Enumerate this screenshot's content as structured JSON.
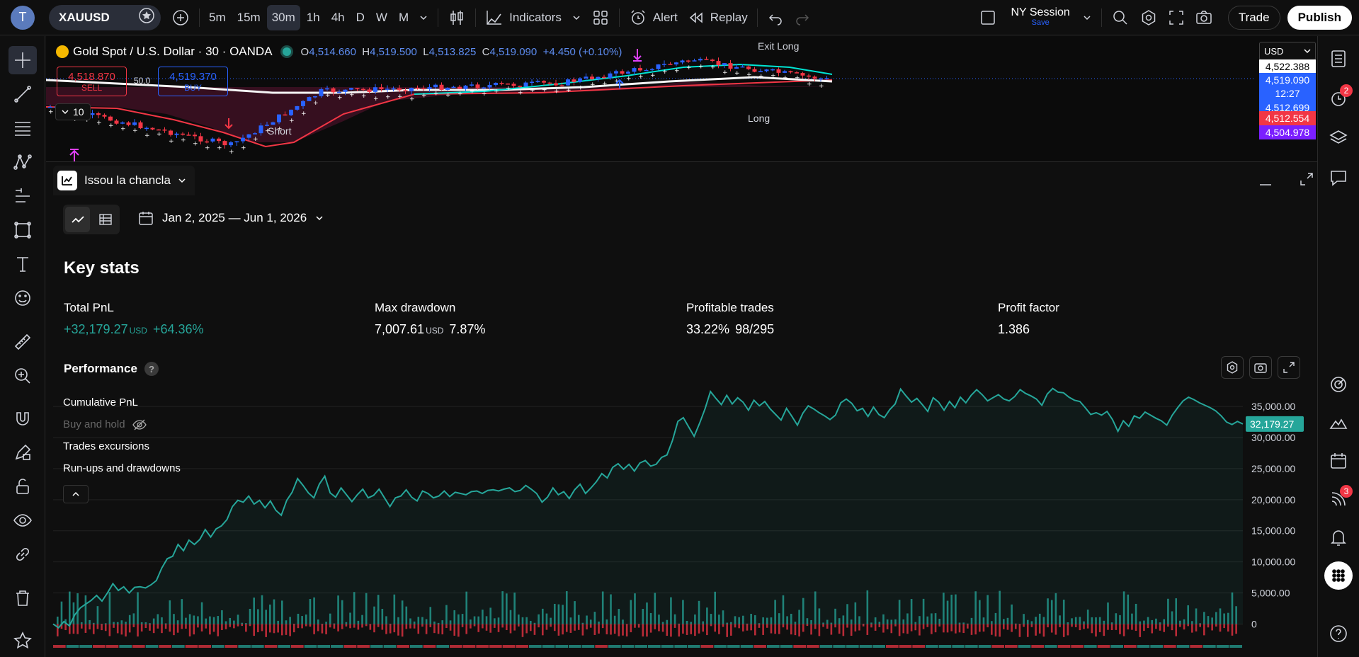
{
  "topbar": {
    "avatar_letter": "T",
    "symbol": "XAUUSD",
    "timeframes": [
      "5m",
      "15m",
      "30m",
      "1h",
      "4h",
      "D",
      "W",
      "M"
    ],
    "active_timeframe": "30m",
    "indicators_label": "Indicators",
    "alert_label": "Alert",
    "replay_label": "Replay",
    "session_label": "NY Session",
    "session_sub": "Save",
    "trade_label": "Trade",
    "publish_label": "Publish"
  },
  "chart": {
    "title": "Gold Spot / U.S. Dollar · 30 · OANDA",
    "open_label": "O",
    "open": "4,514.660",
    "high_label": "H",
    "high": "4,519.500",
    "low_label": "L",
    "low": "4,513.825",
    "close_label": "C",
    "close": "4,519.090",
    "change": "+4.450 (+0.10%)",
    "sell_price": "4,518.870",
    "sell_label": "SELL",
    "spread": "50.0",
    "buy_price": "4,519.370",
    "buy_label": "BUY",
    "collapse_count": "10",
    "annotations": {
      "short": "Short",
      "exit_long": "Exit Long",
      "long": "Long"
    },
    "currency": "USD",
    "price_labels": [
      {
        "value": "4,522.388",
        "bg": "#ffffff",
        "fg": "#000000"
      },
      {
        "value": "4,519.090",
        "bg": "#2962ff",
        "fg": "#ffffff"
      },
      {
        "value": "12:27",
        "bg": "#2962ff",
        "fg": "#ffffff"
      },
      {
        "value": "4,512.699",
        "bg": "#2962ff",
        "fg": "#ffffff"
      },
      {
        "value": "4,512.554",
        "bg": "#f23645",
        "fg": "#ffffff"
      },
      {
        "value": "4,504.978",
        "bg": "#7b1fff",
        "fg": "#ffffff"
      }
    ]
  },
  "panel": {
    "strategy_name": "Issou la chancla",
    "date_range": "Jan 2, 2025 — Jun 1, 2026",
    "key_stats_title": "Key stats",
    "stats": [
      {
        "label": "Total PnL",
        "value": "+32,179.27",
        "unit": "USD",
        "extra": "+64.36%",
        "positive": true
      },
      {
        "label": "Max drawdown",
        "value": "7,007.61",
        "unit": "USD",
        "extra": "7.87%",
        "positive": false
      },
      {
        "label": "Profitable trades",
        "value": "33.22%",
        "unit": "",
        "extra": "98/295",
        "positive": false
      },
      {
        "label": "Profit factor",
        "value": "1.386",
        "unit": "",
        "extra": "",
        "positive": false
      }
    ],
    "performance_title": "Performance",
    "help_glyph": "?",
    "series_toggles": [
      "Cumulative PnL",
      "Buy and hold",
      "Trades excursions",
      "Run-ups and drawdowns"
    ]
  },
  "chart_data": {
    "type": "line",
    "ylim": [
      -2000,
      39000
    ],
    "yticks": [
      "35,000.00",
      "30,000.00",
      "25,000.00",
      "20,000.00",
      "15,000.00",
      "10,000.00",
      "5,000.00",
      "0"
    ],
    "last_value_label": "32,179.27",
    "series": [
      {
        "name": "Cumulative PnL",
        "color": "#26a69a",
        "values": [
          0,
          -600,
          400,
          -300,
          1500,
          2600,
          3200,
          3800,
          4600,
          3700,
          5000,
          6500,
          5400,
          6000,
          5000,
          5900,
          6000,
          5800,
          6300,
          7000,
          9000,
          10500,
          10900,
          12800,
          11800,
          13500,
          12800,
          13600,
          15200,
          14000,
          15300,
          15800,
          16800,
          18900,
          19900,
          19600,
          20600,
          19300,
          19900,
          18700,
          19800,
          18300,
          17500,
          19900,
          21200,
          23400,
          22300,
          21100,
          20300,
          22500,
          23800,
          21100,
          20400,
          21900,
          20800,
          19700,
          20800,
          21700,
          20300,
          20700,
          21700,
          20300,
          18900,
          20300,
          20600,
          21600,
          20400,
          19800,
          21400,
          21000,
          20300,
          20600,
          21400,
          20500,
          21200,
          21000,
          20800,
          21300,
          21400,
          21000,
          21500,
          21600,
          21400,
          21700,
          21900,
          21300,
          21500,
          22300,
          21700,
          21000,
          19600,
          20400,
          21900,
          20800,
          21300,
          20200,
          21600,
          22500,
          21000,
          21900,
          22900,
          24200,
          23500,
          25200,
          25800,
          24900,
          25700,
          24600,
          25900,
          26300,
          25400,
          25700,
          26800,
          27200,
          29500,
          32600,
          33200,
          31700,
          30200,
          32300,
          34600,
          37400,
          36300,
          35300,
          36800,
          35400,
          36400,
          35700,
          34400,
          36000,
          35100,
          35800,
          34600,
          33700,
          32800,
          34700,
          33400,
          32000,
          33900,
          35100,
          34600,
          34000,
          33500,
          32900,
          33600,
          35600,
          36200,
          35500,
          34300,
          34700,
          33400,
          34900,
          33700,
          33200,
          34500,
          35400,
          37800,
          36700,
          35700,
          36300,
          35300,
          34200,
          36400,
          35700,
          34400,
          35800,
          34800,
          36500,
          35600,
          36800,
          37700,
          36900,
          35900,
          36400,
          36900,
          36200,
          35900,
          36600,
          37700,
          37100,
          36700,
          36200,
          35200,
          37000,
          37900,
          37300,
          37200,
          36500,
          36000,
          35800,
          34800,
          33700,
          34000,
          33600,
          34200,
          32900,
          31000,
          32700,
          31800,
          33500,
          33100,
          34100,
          33600,
          33100,
          32700,
          32000,
          33600,
          34800,
          35900,
          36500,
          36100,
          35600,
          35200,
          34800,
          34300,
          33500,
          32500,
          32100,
          32600,
          32179.27
        ]
      }
    ]
  }
}
